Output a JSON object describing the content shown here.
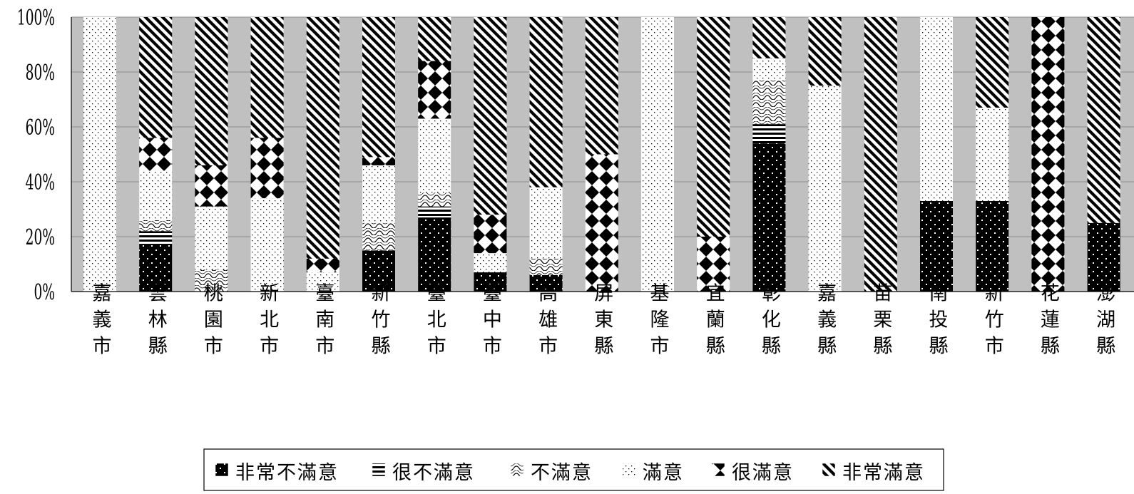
{
  "chart_data": {
    "type": "bar",
    "stacked": true,
    "percent": true,
    "categories": [
      "嘉義市",
      "雲林縣",
      "桃園市",
      "新北市",
      "臺南市",
      "新竹縣",
      "臺北市",
      "臺中市",
      "高雄市",
      "屏東縣",
      "基隆市",
      "宜蘭縣",
      "彰化縣",
      "嘉義縣",
      "苗栗縣",
      "南投縣",
      "新竹市",
      "花蓮縣",
      "澎湖縣"
    ],
    "series": [
      {
        "name": "非常不滿意",
        "pattern": "dots-black",
        "values": [
          0,
          17,
          0,
          0,
          0,
          15,
          27,
          7,
          6,
          0,
          0,
          0,
          54,
          0,
          0,
          33,
          33,
          0,
          25
        ]
      },
      {
        "name": "很不滿意",
        "pattern": "hstripes",
        "values": [
          0,
          5,
          0,
          0,
          0,
          0,
          4,
          0,
          0,
          0,
          0,
          0,
          7,
          0,
          0,
          0,
          0,
          0,
          0
        ]
      },
      {
        "name": "不滿意",
        "pattern": "waves",
        "values": [
          0,
          4,
          8,
          0,
          0,
          10,
          5,
          0,
          6,
          0,
          0,
          0,
          16,
          0,
          0,
          0,
          0,
          0,
          0
        ]
      },
      {
        "name": "滿意",
        "pattern": "dots-white",
        "values": [
          100,
          18,
          23,
          34,
          7,
          21,
          27,
          7,
          26,
          0,
          100,
          0,
          8,
          75,
          0,
          67,
          34,
          0,
          0
        ]
      },
      {
        "name": "很滿意",
        "pattern": "diamonds",
        "values": [
          0,
          12,
          15,
          22,
          5,
          3,
          21,
          14,
          0,
          50,
          0,
          20,
          0,
          0,
          0,
          0,
          0,
          100,
          0
        ]
      },
      {
        "name": "非常滿意",
        "pattern": "diagonal",
        "values": [
          0,
          44,
          54,
          44,
          88,
          51,
          16,
          72,
          62,
          50,
          0,
          80,
          15,
          25,
          100,
          0,
          33,
          0,
          75
        ]
      }
    ],
    "yticks": [
      "0%",
      "20%",
      "40%",
      "60%",
      "80%",
      "100%"
    ],
    "ylim": [
      0,
      100
    ],
    "grid": true,
    "legend": "bottom",
    "colors": {
      "plot_background": "#c0c0c0",
      "grid": "#8c8c8c",
      "ink": "#000000"
    }
  }
}
